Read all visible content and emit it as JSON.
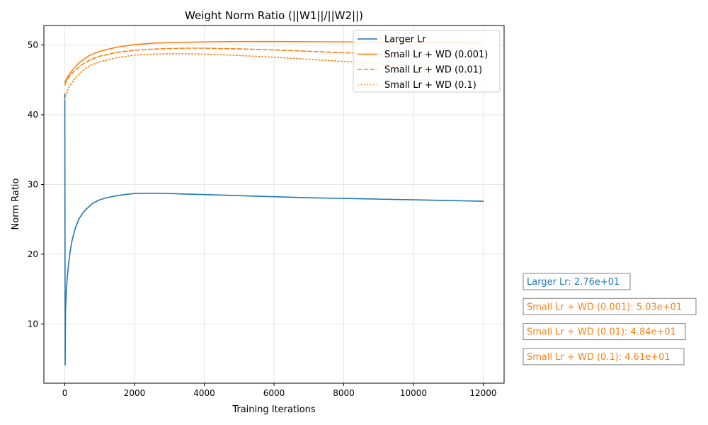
{
  "chart_data": {
    "type": "line",
    "title": "Weight Norm Ratio (||W1||/||W2||)",
    "xlabel": "Training Iterations",
    "ylabel": "Norm Ratio",
    "xlim": [
      -600,
      12600
    ],
    "ylim": [
      1.5,
      52.8
    ],
    "xticks": [
      0,
      2000,
      4000,
      6000,
      8000,
      10000,
      12000
    ],
    "yticks": [
      10,
      20,
      30,
      40,
      50
    ],
    "grid": true,
    "legend_position": "top-right",
    "series": [
      {
        "name": "Larger Lr",
        "color": "#1f77b4",
        "style": "solid",
        "x": [
          0,
          10,
          20,
          40,
          60,
          100,
          150,
          200,
          250,
          300,
          400,
          500,
          600,
          800,
          1000,
          1200,
          1500,
          1800,
          2000,
          2500,
          3000,
          4000,
          5000,
          6000,
          7000,
          8000,
          9000,
          10000,
          11000,
          12000
        ],
        "y": [
          43.0,
          4.1,
          12.0,
          14.5,
          16.0,
          18.3,
          20.3,
          21.8,
          22.8,
          23.7,
          25.0,
          25.8,
          26.4,
          27.3,
          27.8,
          28.1,
          28.4,
          28.6,
          28.7,
          28.75,
          28.7,
          28.55,
          28.4,
          28.25,
          28.1,
          28.0,
          27.9,
          27.8,
          27.7,
          27.6
        ]
      },
      {
        "name": "Small Lr + WD (0.001)",
        "color": "#ff7f0e",
        "style": "solid",
        "x": [
          0,
          50,
          100,
          200,
          300,
          400,
          500,
          700,
          1000,
          1500,
          2000,
          2500,
          3000,
          4000,
          5000,
          6000,
          8000,
          10000,
          12000
        ],
        "y": [
          44.7,
          45.2,
          45.6,
          46.3,
          46.9,
          47.4,
          47.8,
          48.5,
          49.1,
          49.7,
          50.05,
          50.25,
          50.35,
          50.45,
          50.5,
          50.5,
          50.45,
          50.4,
          50.3
        ]
      },
      {
        "name": "Small Lr + WD (0.01)",
        "color": "#ff7f0e",
        "style": "dashed",
        "x": [
          0,
          50,
          100,
          200,
          300,
          400,
          500,
          700,
          1000,
          1500,
          2000,
          2500,
          3000,
          3500,
          4000,
          5000,
          6000,
          7000,
          8000,
          9000,
          10000,
          11000,
          12000
        ],
        "y": [
          44.3,
          44.9,
          45.3,
          45.9,
          46.4,
          46.8,
          47.2,
          47.8,
          48.4,
          48.95,
          49.25,
          49.4,
          49.5,
          49.55,
          49.55,
          49.45,
          49.3,
          49.1,
          48.9,
          48.7,
          48.55,
          48.45,
          48.4
        ]
      },
      {
        "name": "Small Lr + WD (0.1)",
        "color": "#ff7f0e",
        "style": "dotted",
        "x": [
          0,
          50,
          100,
          200,
          300,
          400,
          500,
          700,
          1000,
          1500,
          2000,
          2500,
          3000,
          3500,
          4000,
          5000,
          6000,
          7000,
          8000,
          9000,
          10000,
          11000,
          12000
        ],
        "y": [
          42.2,
          43.2,
          43.8,
          44.6,
          45.3,
          45.8,
          46.3,
          47.0,
          47.6,
          48.2,
          48.55,
          48.7,
          48.75,
          48.75,
          48.7,
          48.5,
          48.25,
          47.95,
          47.65,
          47.35,
          47.0,
          46.5,
          46.1
        ]
      }
    ],
    "annotations": [
      {
        "text": "Larger Lr: 2.76e+01",
        "color": "#1f77b4"
      },
      {
        "text": "Small Lr + WD (0.001): 5.03e+01",
        "color": "#ff7f0e"
      },
      {
        "text": "Small Lr + WD (0.01): 4.84e+01",
        "color": "#ff7f0e"
      },
      {
        "text": "Small Lr + WD (0.1): 4.61e+01",
        "color": "#ff7f0e"
      }
    ]
  }
}
